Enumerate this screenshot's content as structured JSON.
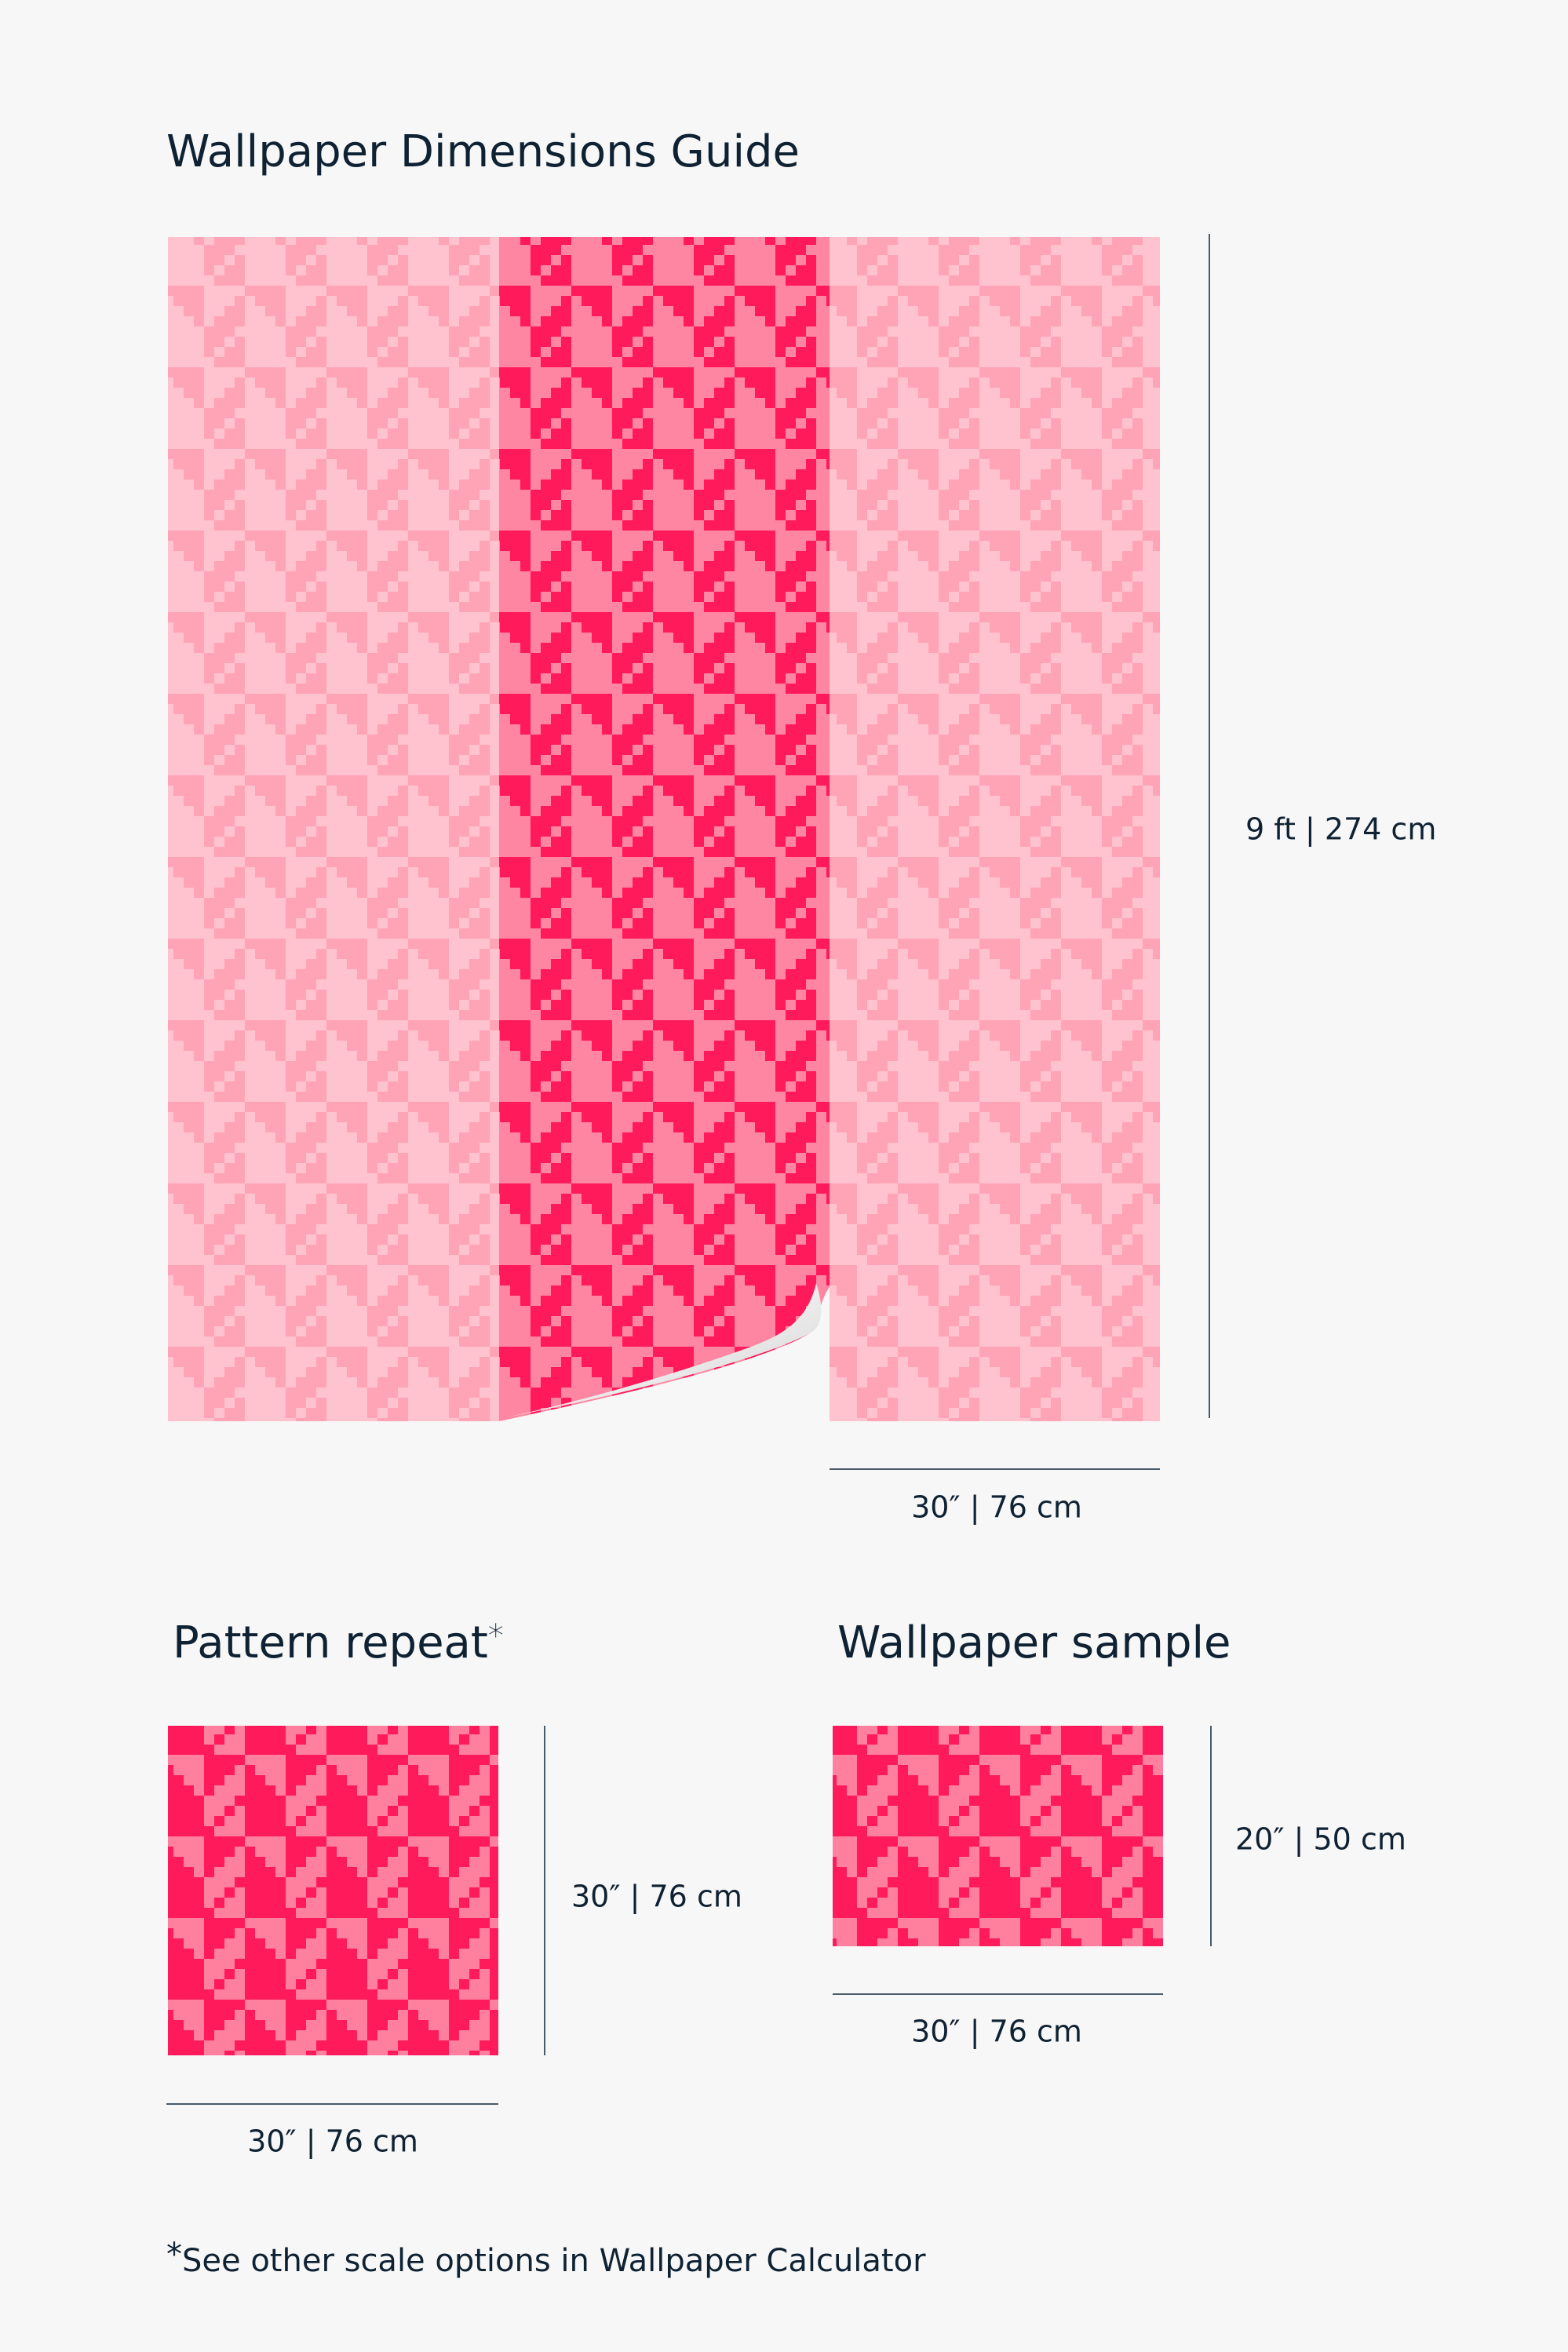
{
  "header": {
    "title": "Wallpaper Dimensions Guide"
  },
  "roll": {
    "height_label": "9 ft | 274 cm",
    "width_label": "30″ | 76 cm"
  },
  "pattern_repeat": {
    "title": "Pattern repeat",
    "title_mark": "*",
    "height_label": "30″ | 76 cm",
    "width_label": "30″ | 76 cm"
  },
  "sample": {
    "title": "Wallpaper sample",
    "height_label": "20″ | 50 cm",
    "width_label": "30″ | 76 cm"
  },
  "footnote": {
    "mark": "*",
    "text": "See other scale options in Wallpaper Calculator"
  }
}
